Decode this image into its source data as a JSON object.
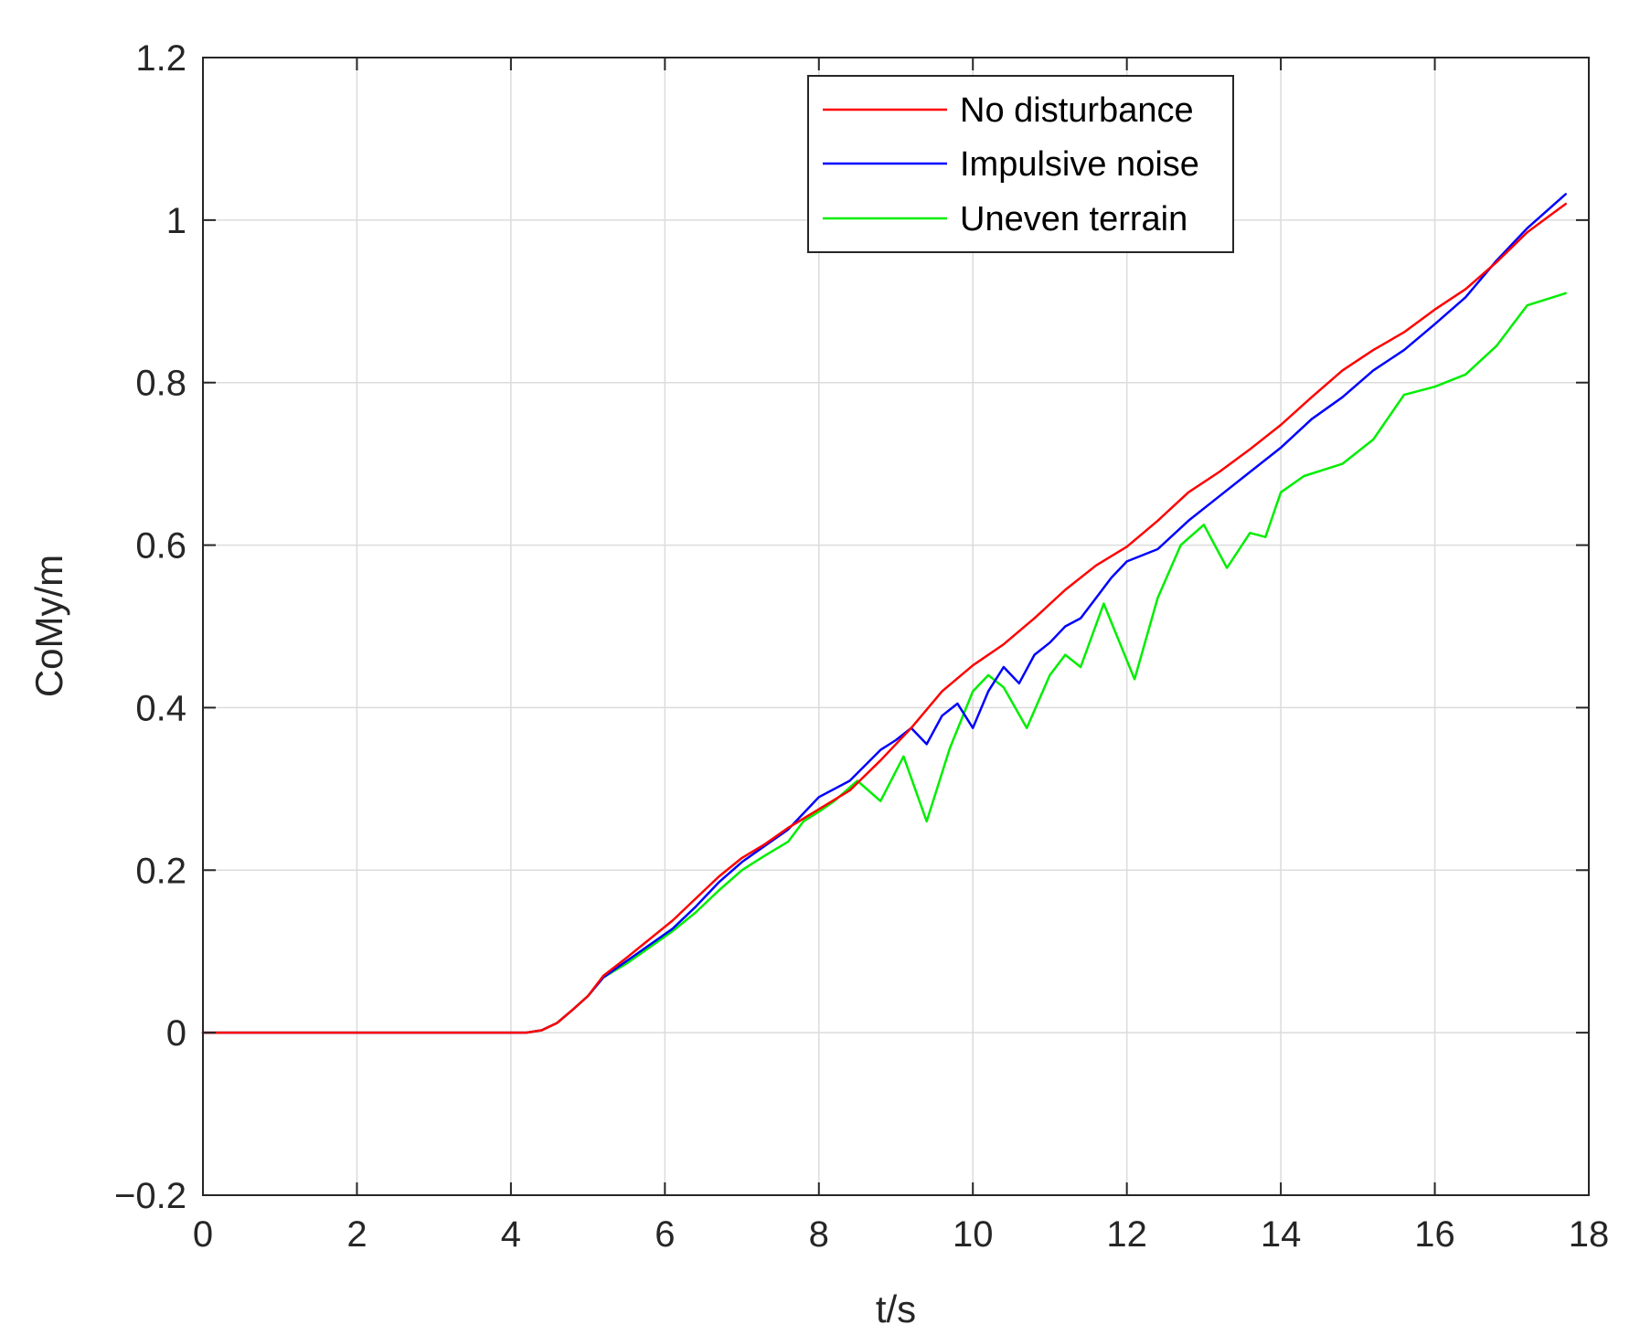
{
  "chart_data": {
    "type": "line",
    "title": "",
    "xlabel": "t/s",
    "ylabel": "CoMy/m",
    "xlim": [
      0,
      18
    ],
    "ylim": [
      -0.2,
      1.2
    ],
    "xticks": [
      0,
      2,
      4,
      6,
      8,
      10,
      12,
      14,
      16,
      18
    ],
    "xtick_labels": [
      "0",
      "2",
      "4",
      "6",
      "8",
      "10",
      "12",
      "14",
      "16",
      "18"
    ],
    "yticks": [
      -0.2,
      0,
      0.2,
      0.4,
      0.6,
      0.8,
      1,
      1.2
    ],
    "ytick_labels": [
      "−0.2",
      "0",
      "0.2",
      "0.4",
      "0.6",
      "0.8",
      "1",
      "1.2"
    ],
    "grid": true,
    "legend_position": "top-right",
    "series": [
      {
        "name": "No disturbance",
        "color": "#ff0000",
        "x": [
          0,
          4.2,
          4.4,
          4.6,
          4.8,
          5.0,
          5.2,
          5.5,
          5.8,
          6.1,
          6.4,
          6.7,
          7.0,
          7.3,
          7.6,
          8.0,
          8.4,
          8.8,
          9.2,
          9.6,
          10.0,
          10.4,
          10.8,
          11.2,
          11.6,
          12.0,
          12.4,
          12.8,
          13.2,
          13.6,
          14.0,
          14.4,
          14.8,
          15.2,
          15.6,
          16.0,
          16.4,
          16.8,
          17.2,
          17.7
        ],
        "y": [
          0,
          0,
          0.003,
          0.012,
          0.028,
          0.045,
          0.07,
          0.092,
          0.115,
          0.138,
          0.165,
          0.192,
          0.215,
          0.232,
          0.252,
          0.275,
          0.298,
          0.335,
          0.375,
          0.42,
          0.452,
          0.478,
          0.51,
          0.545,
          0.575,
          0.598,
          0.63,
          0.665,
          0.69,
          0.718,
          0.748,
          0.782,
          0.815,
          0.84,
          0.862,
          0.89,
          0.915,
          0.948,
          0.985,
          1.02
        ]
      },
      {
        "name": "Impulsive noise",
        "color": "#0000ff",
        "x": [
          0,
          4.2,
          4.4,
          4.6,
          4.8,
          5.0,
          5.2,
          5.5,
          5.8,
          6.1,
          6.4,
          6.7,
          7.0,
          7.3,
          7.6,
          8.0,
          8.4,
          8.8,
          9.0,
          9.2,
          9.4,
          9.6,
          9.8,
          10.0,
          10.2,
          10.4,
          10.6,
          10.8,
          11.0,
          11.2,
          11.4,
          11.6,
          11.8,
          12.0,
          12.4,
          12.8,
          13.2,
          13.6,
          14.0,
          14.4,
          14.8,
          15.2,
          15.6,
          16.0,
          16.4,
          16.8,
          17.2,
          17.7
        ],
        "y": [
          0,
          0,
          0.003,
          0.012,
          0.028,
          0.045,
          0.068,
          0.088,
          0.108,
          0.128,
          0.155,
          0.185,
          0.21,
          0.23,
          0.25,
          0.29,
          0.31,
          0.348,
          0.36,
          0.375,
          0.355,
          0.39,
          0.405,
          0.375,
          0.42,
          0.45,
          0.43,
          0.465,
          0.48,
          0.5,
          0.51,
          0.535,
          0.56,
          0.58,
          0.595,
          0.63,
          0.66,
          0.69,
          0.72,
          0.755,
          0.782,
          0.815,
          0.84,
          0.872,
          0.905,
          0.95,
          0.99,
          1.032
        ]
      },
      {
        "name": "Uneven terrain",
        "color": "#00ee00",
        "x": [
          0,
          4.2,
          4.4,
          4.6,
          4.8,
          5.0,
          5.2,
          5.5,
          5.8,
          6.1,
          6.4,
          6.7,
          7.0,
          7.3,
          7.6,
          7.8,
          8.0,
          8.2,
          8.5,
          8.8,
          9.1,
          9.4,
          9.7,
          10.0,
          10.2,
          10.4,
          10.7,
          11.0,
          11.2,
          11.4,
          11.7,
          12.1,
          12.4,
          12.7,
          13.0,
          13.3,
          13.6,
          13.8,
          14.0,
          14.3,
          14.8,
          15.2,
          15.6,
          16.0,
          16.4,
          16.8,
          17.2,
          17.7
        ],
        "y": [
          0,
          0,
          0.003,
          0.012,
          0.028,
          0.045,
          0.068,
          0.085,
          0.105,
          0.125,
          0.148,
          0.175,
          0.2,
          0.218,
          0.235,
          0.26,
          0.272,
          0.285,
          0.31,
          0.285,
          0.34,
          0.26,
          0.35,
          0.42,
          0.44,
          0.425,
          0.375,
          0.44,
          0.465,
          0.45,
          0.528,
          0.435,
          0.535,
          0.6,
          0.625,
          0.572,
          0.615,
          0.61,
          0.665,
          0.685,
          0.7,
          0.73,
          0.785,
          0.795,
          0.81,
          0.845,
          0.895,
          0.91
        ]
      }
    ]
  }
}
